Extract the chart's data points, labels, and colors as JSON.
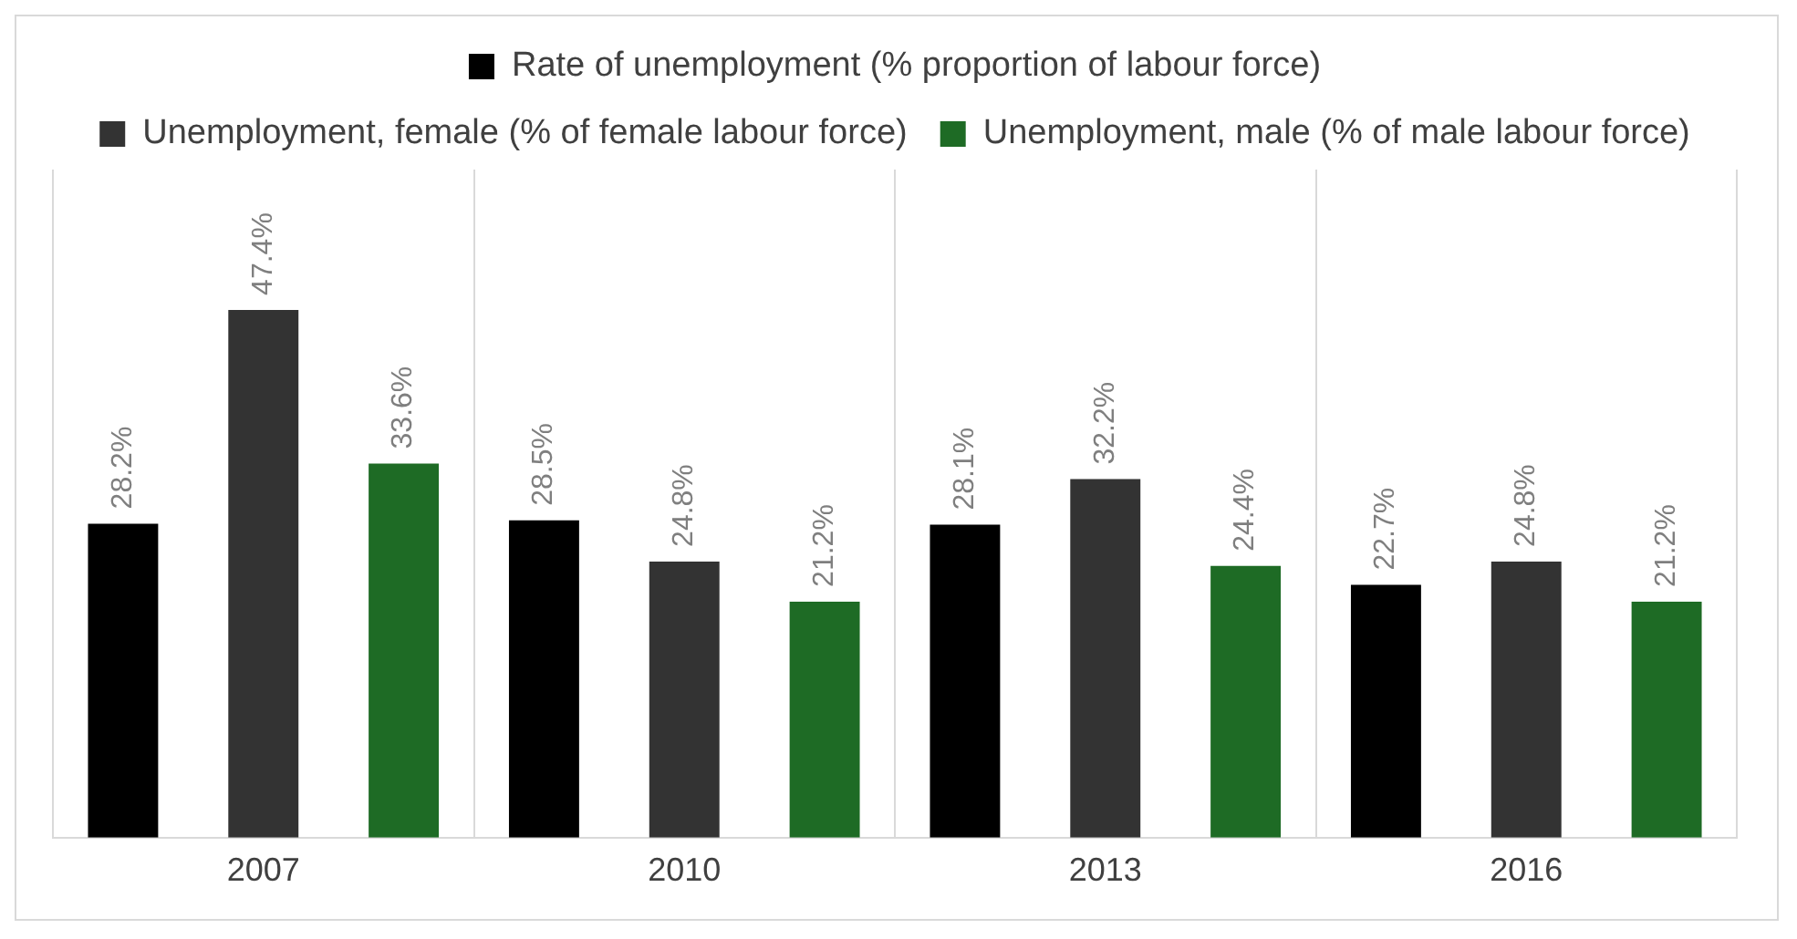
{
  "chart_data": {
    "type": "bar",
    "categories": [
      "2007",
      "2010",
      "2013",
      "2016"
    ],
    "series": [
      {
        "name": "Rate of unemployment (% proportion of labour force)",
        "color": "#000000",
        "values": [
          28.2,
          28.5,
          28.1,
          22.7
        ],
        "value_labels": [
          "28.2%",
          "28.5%",
          "28.1%",
          "22.7%"
        ]
      },
      {
        "name": "Unemployment, female (% of female labour force)",
        "color": "#333333",
        "values": [
          47.4,
          24.8,
          32.2,
          24.8
        ],
        "value_labels": [
          "47.4%",
          "24.8%",
          "32.2%",
          "24.8%"
        ]
      },
      {
        "name": "Unemployment, male (% of male labour force)",
        "color": "#1e6b25",
        "values": [
          33.6,
          21.2,
          24.4,
          21.2
        ],
        "value_labels": [
          "33.6%",
          "21.2%",
          "24.4%",
          "21.2%"
        ]
      }
    ],
    "legend": "top",
    "grid": "x"
  }
}
